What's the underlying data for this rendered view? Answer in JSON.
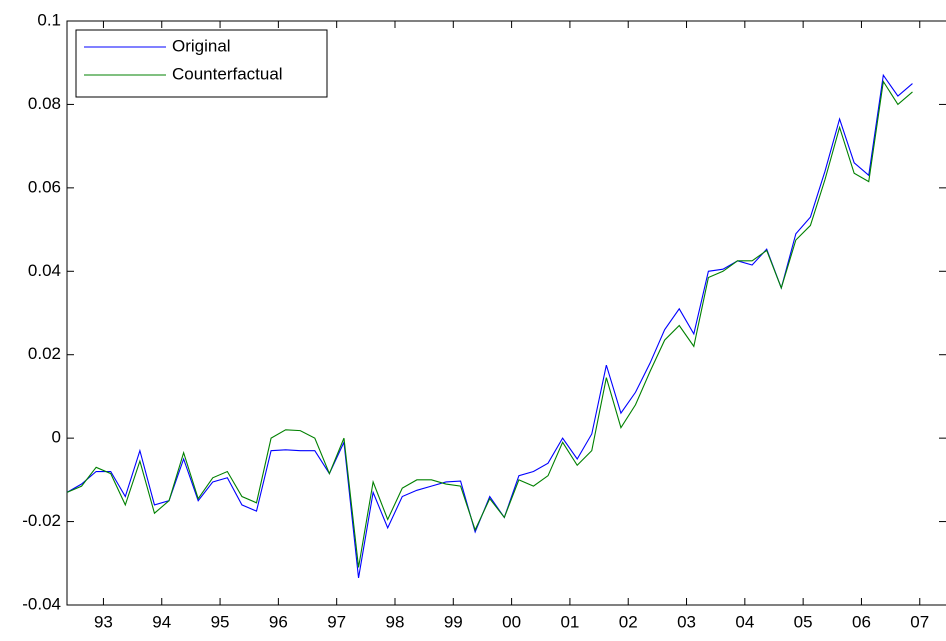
{
  "chart_data": {
    "type": "line",
    "x": [
      1992.375,
      1992.625,
      1992.875,
      1993.125,
      1993.375,
      1993.625,
      1993.875,
      1994.125,
      1994.375,
      1994.625,
      1994.875,
      1995.125,
      1995.375,
      1995.625,
      1995.875,
      1996.125,
      1996.375,
      1996.625,
      1996.875,
      1997.125,
      1997.375,
      1997.625,
      1997.875,
      1998.125,
      1998.375,
      1998.625,
      1998.875,
      1999.125,
      1999.375,
      1999.625,
      1999.875,
      2000.125,
      2000.375,
      2000.625,
      2000.875,
      2001.125,
      2001.375,
      2001.625,
      2001.875,
      2002.125,
      2002.375,
      2002.625,
      2002.875,
      2003.125,
      2003.375,
      2003.625,
      2003.875,
      2004.125,
      2004.375,
      2004.625,
      2004.875,
      2005.125,
      2005.375,
      2005.625,
      2005.875,
      2006.125,
      2006.375,
      2006.625,
      2006.875
    ],
    "series": [
      {
        "name": "Original",
        "color": "#0000ff",
        "values": [
          -0.013,
          -0.011,
          -0.008,
          -0.008,
          -0.014,
          -0.003,
          -0.016,
          -0.015,
          -0.005,
          -0.015,
          -0.0105,
          -0.0095,
          -0.016,
          -0.0175,
          -0.003,
          -0.0028,
          -0.003,
          -0.003,
          -0.0085,
          -0.001,
          -0.0335,
          -0.013,
          -0.0215,
          -0.014,
          -0.0125,
          -0.0115,
          -0.0105,
          -0.0103,
          -0.0225,
          -0.014,
          -0.019,
          -0.009,
          -0.008,
          -0.006,
          0.0,
          -0.005,
          0.001,
          0.0175,
          0.006,
          0.011,
          0.018,
          0.026,
          0.031,
          0.025,
          0.04,
          0.0405,
          0.0425,
          0.0415,
          0.0453,
          0.036,
          0.049,
          0.053,
          0.064,
          0.0765,
          0.066,
          0.063,
          0.087,
          0.082,
          0.085
        ]
      },
      {
        "name": "Counterfactual",
        "color": "#008000",
        "values": [
          -0.013,
          -0.0115,
          -0.007,
          -0.0085,
          -0.016,
          -0.0055,
          -0.018,
          -0.015,
          -0.0035,
          -0.0145,
          -0.0095,
          -0.008,
          -0.014,
          -0.0155,
          0.0,
          0.002,
          0.0018,
          0.0,
          -0.0085,
          0.0,
          -0.031,
          -0.0105,
          -0.0195,
          -0.012,
          -0.01,
          -0.01,
          -0.011,
          -0.0115,
          -0.022,
          -0.0145,
          -0.019,
          -0.01,
          -0.0115,
          -0.009,
          -0.001,
          -0.0065,
          -0.003,
          0.0145,
          0.0025,
          0.008,
          0.016,
          0.0235,
          0.027,
          0.022,
          0.0385,
          0.04,
          0.0425,
          0.0425,
          0.045,
          0.036,
          0.0475,
          0.051,
          0.062,
          0.0745,
          0.0635,
          0.0615,
          0.0855,
          0.08,
          0.083
        ]
      }
    ],
    "xlim": [
      1992.375,
      2007.45
    ],
    "xticks": [
      {
        "value": 1993,
        "label": "93"
      },
      {
        "value": 1994,
        "label": "94"
      },
      {
        "value": 1995,
        "label": "95"
      },
      {
        "value": 1996,
        "label": "96"
      },
      {
        "value": 1997,
        "label": "97"
      },
      {
        "value": 1998,
        "label": "98"
      },
      {
        "value": 1999,
        "label": "99"
      },
      {
        "value": 2000,
        "label": "00"
      },
      {
        "value": 2001,
        "label": "01"
      },
      {
        "value": 2002,
        "label": "02"
      },
      {
        "value": 2003,
        "label": "03"
      },
      {
        "value": 2004,
        "label": "04"
      },
      {
        "value": 2005,
        "label": "05"
      },
      {
        "value": 2006,
        "label": "06"
      },
      {
        "value": 2007,
        "label": "07"
      }
    ],
    "ylim": [
      -0.04,
      0.1
    ],
    "yticks": [
      -0.04,
      -0.02,
      0,
      0.02,
      0.04,
      0.06,
      0.08,
      0.1
    ],
    "grid": false,
    "legend": "upper-left"
  }
}
